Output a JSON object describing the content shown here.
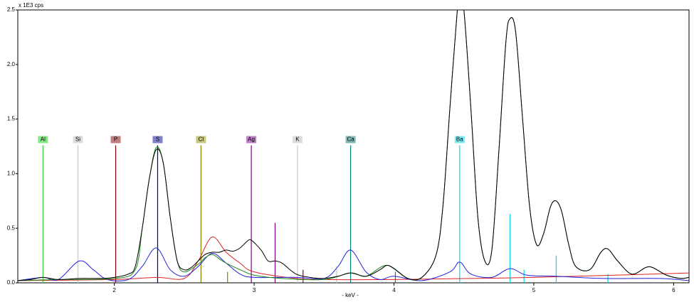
{
  "chart_data": {
    "type": "line",
    "y_axis_label": "x 1E3 cps",
    "x_axis_label": "- keV -",
    "xlim": [
      1.31,
      6.11
    ],
    "ylim": [
      0,
      2.5
    ],
    "xticks": [
      2,
      3,
      4,
      5,
      6
    ],
    "yticks": [
      {
        "value": 0,
        "label": "0.0"
      },
      0.5,
      {
        "value": 1,
        "label": "1.0"
      },
      1.5,
      {
        "value": 2,
        "label": "2.0"
      },
      2.5
    ],
    "series": [
      {
        "color": "#000000",
        "x": [
          1.31,
          1.4,
          1.49,
          1.6,
          1.75,
          1.9,
          2.0,
          2.1,
          2.15,
          2.2,
          2.25,
          2.3,
          2.35,
          2.4,
          2.45,
          2.5,
          2.55,
          2.6,
          2.65,
          2.7,
          2.75,
          2.8,
          2.85,
          2.9,
          2.95,
          2.98,
          3.05,
          3.1,
          3.15,
          3.2,
          3.3,
          3.4,
          3.5,
          3.6,
          3.69,
          3.8,
          3.9,
          3.95,
          4.0,
          4.1,
          4.2,
          4.3,
          4.35,
          4.4,
          4.45,
          4.47,
          4.5,
          4.55,
          4.6,
          4.65,
          4.7,
          4.75,
          4.8,
          4.83,
          4.87,
          4.92,
          4.97,
          5.02,
          5.07,
          5.12,
          5.16,
          5.2,
          5.25,
          5.3,
          5.4,
          5.48,
          5.53,
          5.6,
          5.7,
          5.8,
          5.85,
          5.95,
          6.05,
          6.11
        ],
        "values": [
          0.02,
          0.03,
          0.05,
          0.03,
          0.04,
          0.04,
          0.05,
          0.08,
          0.15,
          0.5,
          0.95,
          1.22,
          1.1,
          0.6,
          0.2,
          0.12,
          0.14,
          0.2,
          0.26,
          0.28,
          0.28,
          0.3,
          0.29,
          0.32,
          0.38,
          0.39,
          0.3,
          0.2,
          0.2,
          0.18,
          0.08,
          0.05,
          0.04,
          0.06,
          0.09,
          0.06,
          0.12,
          0.16,
          0.13,
          0.04,
          0.05,
          0.25,
          0.7,
          1.6,
          2.45,
          2.6,
          2.5,
          1.6,
          0.6,
          0.2,
          0.3,
          1.2,
          2.2,
          2.42,
          2.3,
          1.5,
          0.7,
          0.35,
          0.45,
          0.7,
          0.75,
          0.65,
          0.35,
          0.15,
          0.12,
          0.28,
          0.31,
          0.2,
          0.08,
          0.14,
          0.14,
          0.07,
          0.04,
          0.05
        ]
      },
      {
        "color": "#1a8a1a",
        "x": [
          1.31,
          1.6,
          2.0,
          2.15,
          2.2,
          2.25,
          2.3,
          2.35,
          2.4,
          2.45,
          2.5,
          2.6,
          2.65,
          2.7,
          2.75,
          2.8,
          2.9,
          3.0,
          3.2,
          3.5,
          3.69,
          3.8,
          3.95,
          4.1,
          4.2,
          4.3,
          4.35,
          4.4,
          4.45,
          4.47,
          4.5,
          4.55,
          4.6,
          4.65,
          4.7,
          4.75,
          4.8,
          4.83,
          4.87,
          4.92,
          4.97,
          5.02,
          5.07,
          5.12,
          5.16,
          5.2,
          5.25,
          5.3,
          5.4,
          5.48,
          5.53,
          5.6,
          5.7,
          5.8,
          5.85,
          5.95,
          6.05,
          6.11
        ],
        "values": [
          0.02,
          0.03,
          0.04,
          0.12,
          0.5,
          0.95,
          1.24,
          1.1,
          0.6,
          0.2,
          0.1,
          0.17,
          0.23,
          0.26,
          0.22,
          0.18,
          0.12,
          0.07,
          0.04,
          0.03,
          0.09,
          0.06,
          0.16,
          0.04,
          0.05,
          0.25,
          0.7,
          1.6,
          2.45,
          2.6,
          2.5,
          1.6,
          0.6,
          0.2,
          0.3,
          1.2,
          2.2,
          2.42,
          2.3,
          1.5,
          0.7,
          0.35,
          0.45,
          0.7,
          0.75,
          0.65,
          0.35,
          0.15,
          0.12,
          0.28,
          0.31,
          0.2,
          0.08,
          0.14,
          0.14,
          0.07,
          0.04,
          0.05
        ]
      },
      {
        "color": "#2222dd",
        "x": [
          1.31,
          1.49,
          1.6,
          1.75,
          1.85,
          1.95,
          2.1,
          2.2,
          2.3,
          2.4,
          2.5,
          2.6,
          2.7,
          2.8,
          2.9,
          3.0,
          3.3,
          3.5,
          3.6,
          3.69,
          3.8,
          3.9,
          4.0,
          4.2,
          4.4,
          4.47,
          4.55,
          4.7,
          4.83,
          4.95,
          5.16,
          5.5,
          5.9,
          6.11
        ],
        "values": [
          0.02,
          0.05,
          0.03,
          0.2,
          0.12,
          0.03,
          0.03,
          0.15,
          0.32,
          0.12,
          0.06,
          0.15,
          0.27,
          0.18,
          0.08,
          0.05,
          0.05,
          0.04,
          0.15,
          0.3,
          0.1,
          0.03,
          0.06,
          0.02,
          0.1,
          0.19,
          0.08,
          0.05,
          0.13,
          0.07,
          0.06,
          0.04,
          0.04,
          0.02
        ]
      },
      {
        "color": "#dd2222",
        "x": [
          1.31,
          2.0,
          2.3,
          2.5,
          2.6,
          2.7,
          2.8,
          2.9,
          3.0,
          3.3,
          3.5,
          4.0,
          5.0,
          6.11
        ],
        "values": [
          0.02,
          0.03,
          0.05,
          0.04,
          0.2,
          0.42,
          0.28,
          0.18,
          0.1,
          0.04,
          0.03,
          0.03,
          0.05,
          0.09
        ]
      }
    ],
    "elements": [
      {
        "label": "Al",
        "energy": 1.49,
        "height": 1.26,
        "color": "#33cc33",
        "box": "#88e888",
        "lines": []
      },
      {
        "label": "Si",
        "energy": 1.74,
        "height": 1.26,
        "color": "#c8c8c8",
        "box": "#dddddd",
        "lines": []
      },
      {
        "label": "P",
        "energy": 2.01,
        "height": 1.26,
        "color": "#800000",
        "box": "#c08080",
        "lines": []
      },
      {
        "label": "S",
        "energy": 2.31,
        "height": 1.26,
        "color": "#000080",
        "box": "#8080c8",
        "lines": []
      },
      {
        "label": "Cl",
        "energy": 2.62,
        "height": 1.26,
        "color": "#808000",
        "box": "#c8c880",
        "lines": [
          {
            "energy": 2.81,
            "height": 0.1
          }
        ]
      },
      {
        "label": "Ag",
        "energy": 2.98,
        "height": 1.26,
        "color": "#800080",
        "box": "#c080c8",
        "lines": [
          {
            "energy": 3.15,
            "height": 0.55
          },
          {
            "energy": 3.35,
            "height": 0.12
          }
        ]
      },
      {
        "label": "K",
        "energy": 3.31,
        "height": 1.26,
        "color": "#c8c8c8",
        "box": "#dddddd",
        "lines": [
          {
            "energy": 3.59,
            "height": 0.15
          }
        ]
      },
      {
        "label": "Ca",
        "energy": 3.69,
        "height": 1.26,
        "color": "#008080",
        "box": "#80b8b8",
        "lines": [
          {
            "energy": 4.01,
            "height": 0.1
          }
        ]
      },
      {
        "label": "Ba",
        "energy": 4.47,
        "height": 1.26,
        "color": "#00d8e8",
        "box": "#80e8f0",
        "lines": [
          {
            "energy": 4.83,
            "height": 0.63
          },
          {
            "energy": 4.93,
            "height": 0.12
          },
          {
            "energy": 5.16,
            "height": 0.25
          },
          {
            "energy": 5.53,
            "height": 0.08
          }
        ]
      }
    ]
  }
}
